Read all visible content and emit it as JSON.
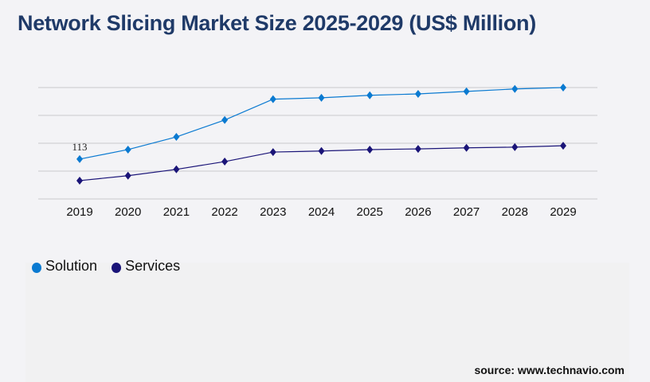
{
  "title": "Network Slicing Market Size 2025-2029 (US$ Million)",
  "source": "source: www.technavio.com",
  "chart_data": {
    "type": "line",
    "title": "Network Slicing Market Size 2025-2029 (US$ Million)",
    "categories": [
      "2019",
      "2020",
      "2021",
      "2022",
      "2023",
      "2024",
      "2025",
      "2026",
      "2027",
      "2028",
      "2029"
    ],
    "series": [
      {
        "name": "Solution",
        "color": "#0a7ad1",
        "values": [
          113,
          140,
          176,
          224,
          283,
          287,
          294,
          298,
          305,
          312,
          316
        ]
      },
      {
        "name": "Services",
        "color": "#1a1478",
        "values": [
          52,
          66,
          84,
          106,
          133,
          136,
          140,
          142,
          145,
          147,
          151
        ]
      }
    ],
    "data_labels": [
      {
        "series": "Solution",
        "category": "2019",
        "text": "113"
      }
    ],
    "ylim": [
      0,
      316
    ],
    "grid": true,
    "y_tick_labels": false,
    "marker": "diamond",
    "legend_placement": "bottom-left"
  }
}
